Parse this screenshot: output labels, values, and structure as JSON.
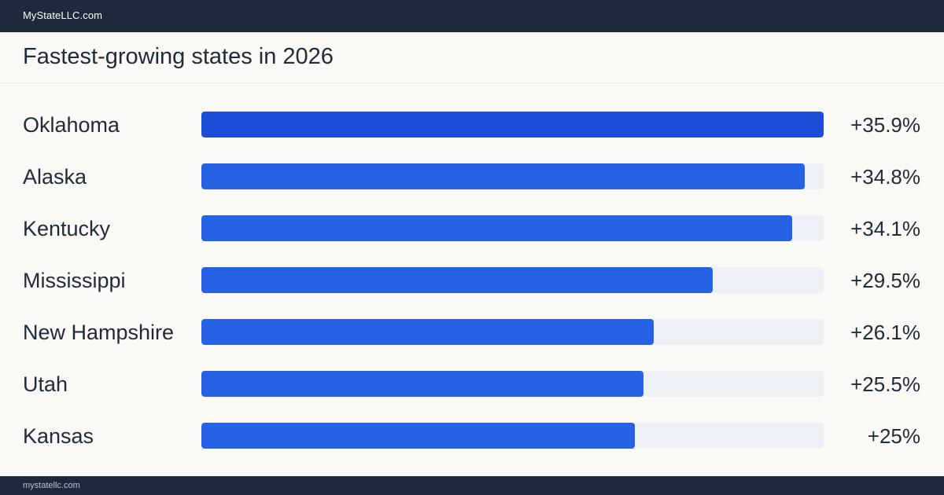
{
  "header": {
    "brand": "MyStateLLC.com"
  },
  "title": "Fastest-growing  states  in 2026",
  "footer": {
    "text": "mystatellc.com"
  },
  "colors": {
    "top_bar": "#2563e4",
    "bar": "#2563e4",
    "track": "#edf1f7",
    "header_bg": "#1e293b",
    "page_bg": "#faf9f6"
  },
  "chart_data": {
    "type": "bar",
    "orientation": "horizontal",
    "categories": [
      "Oklahoma",
      "Alaska",
      "Kentucky",
      "Mississippi",
      "New Hampshire",
      "Utah",
      "Kansas"
    ],
    "values": [
      35.9,
      34.8,
      34.1,
      29.5,
      26.1,
      25.5,
      25
    ],
    "value_labels": [
      "+35.9%",
      "+34.8%",
      "+34.1%",
      "+29.5%",
      "+26.1%",
      "+25.5%",
      "+25%"
    ],
    "xlim": [
      0,
      35.9
    ],
    "grid": false,
    "legend": "none"
  }
}
